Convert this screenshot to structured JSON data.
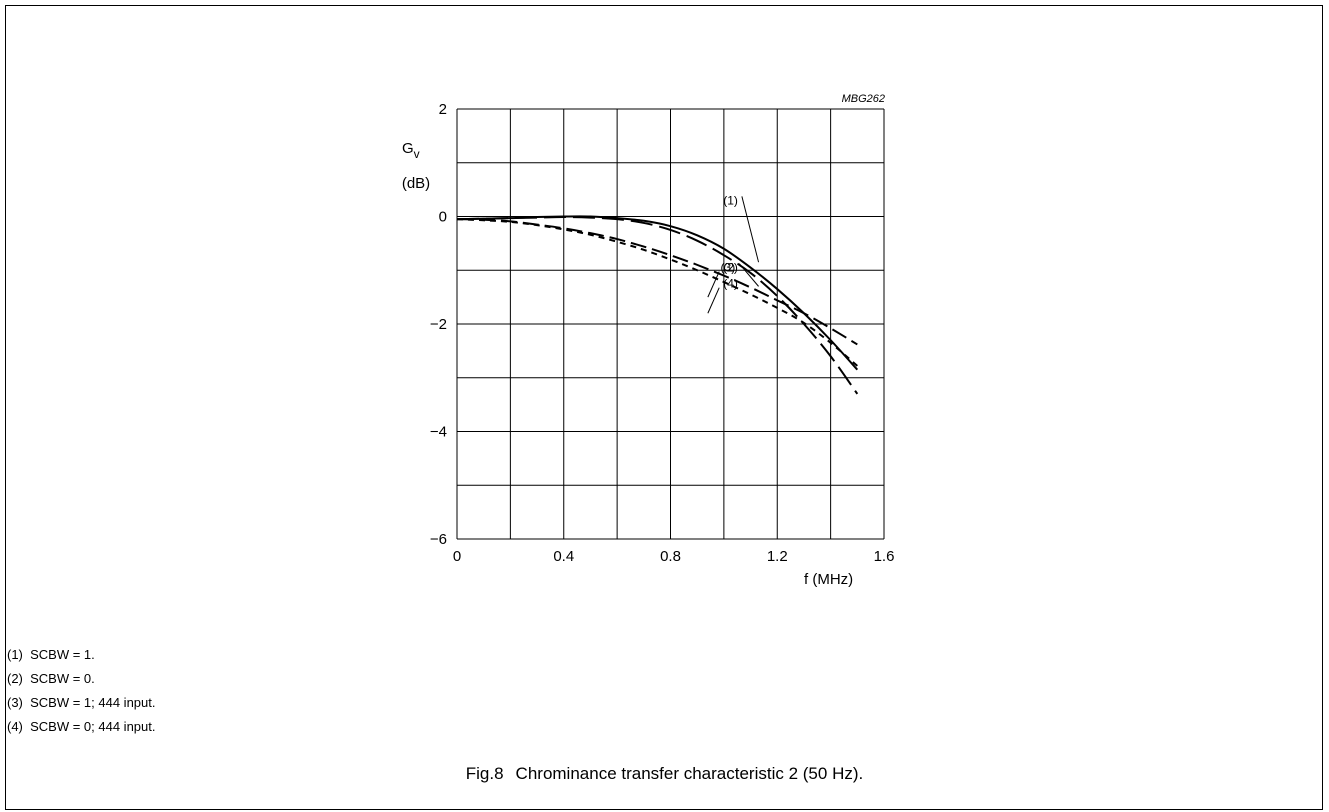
{
  "chart_data": {
    "type": "line",
    "code": "MBG262",
    "ylabel_main": "G",
    "ylabel_sub": "v",
    "yunit": "(dB)",
    "xlabel": "f (MHz)",
    "xlim": [
      0,
      1.6
    ],
    "ylim": [
      -6,
      2
    ],
    "x_ticks": [
      {
        "value": 0,
        "label": "0"
      },
      {
        "value": 0.4,
        "label": "0.4"
      },
      {
        "value": 0.8,
        "label": "0.8"
      },
      {
        "value": 1.2,
        "label": "1.2"
      },
      {
        "value": 1.6,
        "label": "1.6"
      }
    ],
    "y_ticks": [
      {
        "value": 2,
        "label": "2"
      },
      {
        "value": 0,
        "label": "0"
      },
      {
        "value": -2,
        "label": "−2"
      },
      {
        "value": -4,
        "label": "−4"
      },
      {
        "value": -6,
        "label": "−6"
      }
    ],
    "grid": true,
    "grid_step_x": 0.2,
    "grid_step_y": 1,
    "series": [
      {
        "name": "(1)",
        "style": "solid",
        "x": [
          0,
          0.1,
          0.2,
          0.3,
          0.4,
          0.5,
          0.6,
          0.7,
          0.8,
          0.9,
          1.0,
          1.1,
          1.2,
          1.3,
          1.4,
          1.5
        ],
        "y": [
          -0.05,
          -0.04,
          -0.03,
          -0.01,
          0.0,
          0.0,
          -0.03,
          -0.08,
          -0.18,
          -0.35,
          -0.6,
          -0.95,
          -1.35,
          -1.8,
          -2.3,
          -2.85
        ]
      },
      {
        "name": "(2)",
        "style": "long-dash",
        "x": [
          0,
          0.1,
          0.2,
          0.3,
          0.4,
          0.5,
          0.6,
          0.7,
          0.8,
          0.9,
          1.0,
          1.1,
          1.2,
          1.3,
          1.4,
          1.5
        ],
        "y": [
          -0.05,
          -0.06,
          -0.09,
          -0.15,
          -0.22,
          -0.31,
          -0.42,
          -0.56,
          -0.72,
          -0.9,
          -1.1,
          -1.32,
          -1.56,
          -1.8,
          -2.08,
          -2.38
        ]
      },
      {
        "name": "(3)",
        "style": "dash",
        "x": [
          0,
          0.1,
          0.2,
          0.3,
          0.4,
          0.5,
          0.6,
          0.7,
          0.8,
          0.9,
          1.0,
          1.1,
          1.2,
          1.3,
          1.4,
          1.5
        ],
        "y": [
          -0.05,
          -0.04,
          -0.03,
          -0.02,
          -0.01,
          -0.02,
          -0.05,
          -0.12,
          -0.25,
          -0.45,
          -0.72,
          -1.05,
          -1.48,
          -2.0,
          -2.6,
          -3.3
        ]
      },
      {
        "name": "(4)",
        "style": "short-dash",
        "x": [
          0,
          0.1,
          0.2,
          0.3,
          0.4,
          0.5,
          0.6,
          0.7,
          0.8,
          0.9,
          1.0,
          1.1,
          1.2,
          1.3,
          1.4,
          1.5
        ],
        "y": [
          -0.05,
          -0.07,
          -0.1,
          -0.16,
          -0.24,
          -0.34,
          -0.47,
          -0.62,
          -0.8,
          -1.0,
          -1.22,
          -1.45,
          -1.7,
          -1.98,
          -2.35,
          -2.78
        ]
      }
    ],
    "annotations": [
      {
        "label": "(1)",
        "x": 1.13,
        "y": -0.85,
        "lx": 1.06,
        "ly": 0.3
      },
      {
        "label": "(3)",
        "x": 1.13,
        "y": -1.3,
        "lx": 1.05,
        "ly": -0.95
      },
      {
        "label": "(2)",
        "x": 0.94,
        "y": -1.5,
        "lx": 0.99,
        "ly": -0.95
      },
      {
        "label": "(4)",
        "x": 0.94,
        "y": -1.8,
        "lx": 0.99,
        "ly": -1.25
      }
    ]
  },
  "notes": [
    "(1)  SCBW = 1.",
    "(2)  SCBW = 0.",
    "(3)  SCBW = 1; 444 input.",
    "(4)  SCBW = 0; 444 input."
  ],
  "caption": {
    "number": "Fig.8",
    "text": "Chrominance transfer characteristic 2 (50 Hz)."
  }
}
